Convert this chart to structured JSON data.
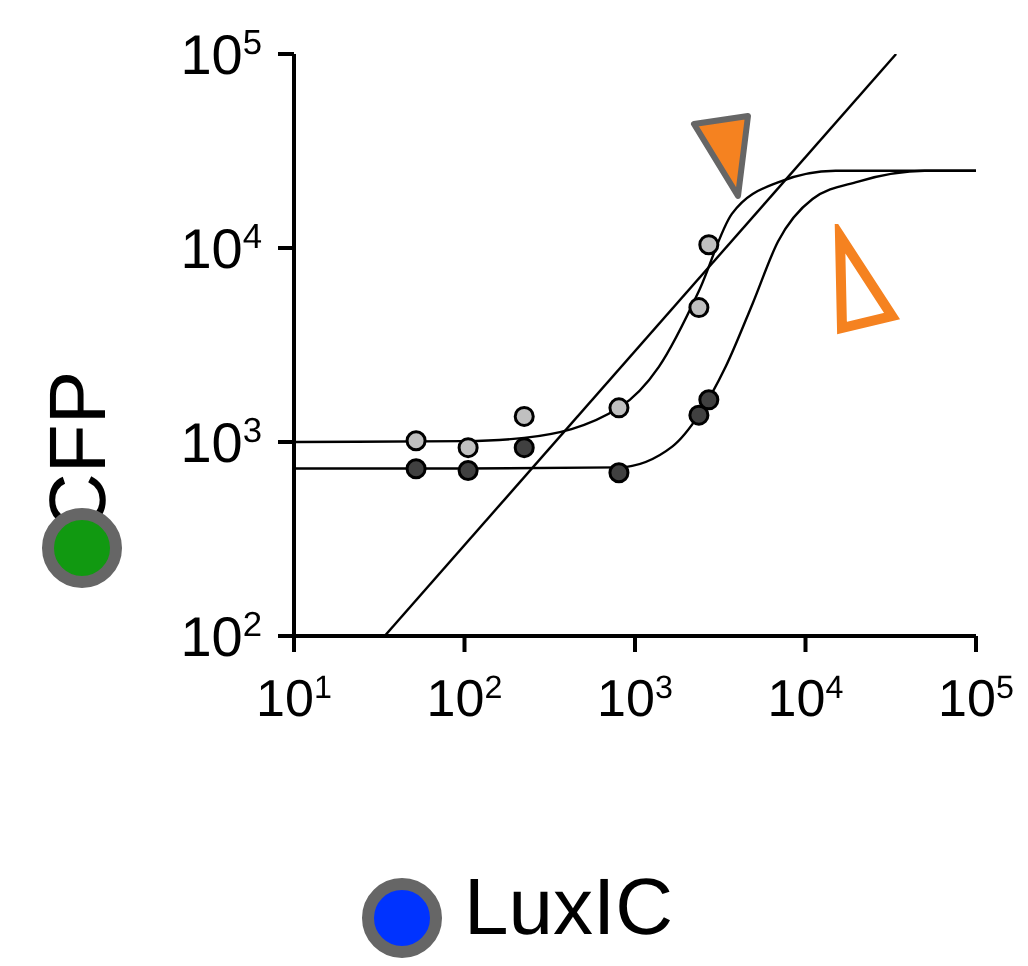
{
  "chart_data": {
    "type": "scatter",
    "xlabel": "LuxIC",
    "ylabel": "CFP",
    "log": "xy",
    "grid": false,
    "legend": false,
    "xlim": [
      10,
      100000
    ],
    "ylim": [
      100,
      100000
    ],
    "xticks": [
      {
        "value": 10,
        "label": "10$^{1}$"
      },
      {
        "value": 100,
        "label": "10$^{2}$"
      },
      {
        "value": 1000,
        "label": "10$^{3}$"
      },
      {
        "value": 10000,
        "label": "10$^{4}$"
      },
      {
        "value": 100000,
        "label": "10$^{5}$"
      }
    ],
    "yticks": [
      {
        "value": 100,
        "label": "10$^{2}$"
      },
      {
        "value": 1000,
        "label": "10$^{3}$"
      },
      {
        "value": 10000,
        "label": "10$^{4}$"
      },
      {
        "value": 100000,
        "label": "10$^{5}$"
      }
    ],
    "series": [
      {
        "type": "line",
        "color": "#000000",
        "marker": "none",
        "x": [
          34,
          34000
        ],
        "values": [
          100,
          100000
        ]
      },
      {
        "type": "line",
        "color": "#000000",
        "marker": "none",
        "x": [
          10,
          100,
          224,
          805,
          1380,
          2370,
          3700,
          6900,
          15000,
          100000
        ],
        "values": [
          1000,
          1010,
          1050,
          1500,
          2440,
          6000,
          15000,
          21800,
          25000,
          25000
        ]
      },
      {
        "type": "line",
        "color": "#000000",
        "marker": "none",
        "x": [
          10,
          100,
          800,
          1660,
          2370,
          3400,
          4900,
          6900,
          11000,
          20400,
          50000,
          100000
        ],
        "values": [
          730,
          730,
          740,
          950,
          1380,
          2440,
          5180,
          10800,
          17900,
          22000,
          25000,
          25000
        ]
      },
      {
        "color": "#c0c0c0",
        "marker": "circle",
        "x": [
          52,
          105,
          224,
          805,
          2370,
          2710
        ],
        "values": [
          1015,
          935,
          1355,
          1500,
          4930,
          10400
        ]
      },
      {
        "color": "#404040",
        "marker": "circle",
        "x": [
          52,
          105,
          224,
          805,
          2370,
          2710
        ],
        "values": [
          728,
          713,
          935,
          694,
          1375,
          1650
        ]
      }
    ]
  }
}
